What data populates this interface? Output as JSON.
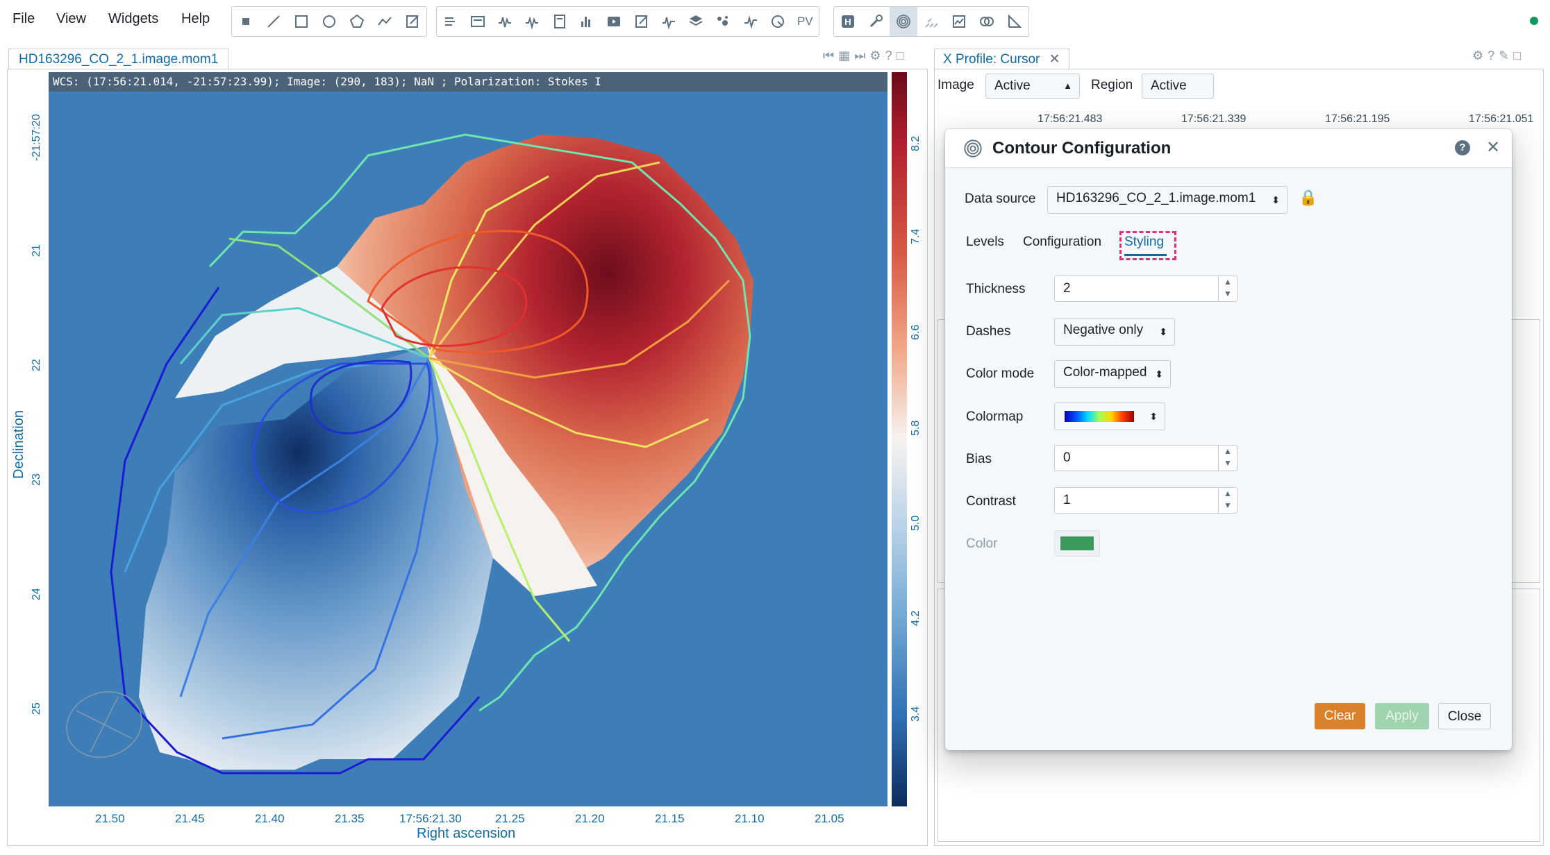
{
  "menu": {
    "items": [
      "File",
      "View",
      "Widgets",
      "Help"
    ]
  },
  "toolbar": {
    "region_tools": [
      "point-icon",
      "line-icon",
      "rectangle-icon",
      "ellipse-icon",
      "polygon-icon",
      "polyline-icon",
      "annotation-icon"
    ],
    "widget_tools": [
      "header-icon",
      "file-info-icon",
      "spatial-profile-icon",
      "spectral-profile-icon",
      "statistics-icon",
      "histogram-icon",
      "animator-icon",
      "render-config-icon",
      "stokes-icon",
      "layers-icon",
      "catalog-icon",
      "spectral-line-icon",
      "moment-icon",
      "pv-icon"
    ],
    "pv_label": "PV",
    "dialog_tools": [
      "hub-icon",
      "preferences-icon",
      "contour-icon",
      "vector-overlay-icon",
      "region-manager-icon",
      "spectral-matching-icon",
      "distance-icon"
    ]
  },
  "image_panel": {
    "tab_label": "HD163296_CO_2_1.image.mom1",
    "wcs_info": "WCS: (17:56:21.014, -21:57:23.99); Image: (290, 183); NaN ; Polarization: Stokes I",
    "colorbar_labels": [
      "8.2",
      "7.4",
      "6.6",
      "5.8",
      "5.0",
      "4.2",
      "3.4"
    ],
    "dec_ticks": [
      "-21:57:20",
      "21",
      "22",
      "23",
      "24",
      "25"
    ],
    "ra_ticks": [
      "21.50",
      "21.45",
      "21.40",
      "21.35",
      "17:56:21.30",
      "21.25",
      "21.20",
      "21.15",
      "21.10",
      "21.05"
    ],
    "x_axis_label": "Right ascension",
    "y_axis_label": "Declination",
    "colors": {
      "background": "#3d7db8",
      "positive": "#c1272d",
      "negative": "#1f4e9a"
    }
  },
  "profile_panel": {
    "tab_label": "X Profile: Cursor",
    "image_label": "Image",
    "image_value": "Active",
    "region_label": "Region",
    "region_value": "Active",
    "ticks": [
      "17:56:21.483",
      "17:56:21.339",
      "17:56:21.195",
      "17:56:21.051"
    ]
  },
  "contour_dialog": {
    "title": "Contour Configuration",
    "data_source_label": "Data source",
    "data_source_value": "HD163296_CO_2_1.image.mom1",
    "tabs": [
      "Levels",
      "Configuration",
      "Styling"
    ],
    "active_tab": "Styling",
    "thickness_label": "Thickness",
    "thickness_value": "2",
    "dashes_label": "Dashes",
    "dashes_value": "Negative only",
    "color_mode_label": "Color mode",
    "color_mode_value": "Color-mapped",
    "colormap_label": "Colormap",
    "bias_label": "Bias",
    "bias_value": "0",
    "contrast_label": "Contrast",
    "contrast_value": "1",
    "color_label": "Color",
    "color_swatch": "#3d9a5f",
    "clear_label": "Clear",
    "apply_label": "Apply",
    "close_label": "Close",
    "colors": {
      "clear": "#d9822b",
      "apply": "#9fd4ae",
      "accent": "#106ba3",
      "highlight": "#d6337a"
    }
  }
}
